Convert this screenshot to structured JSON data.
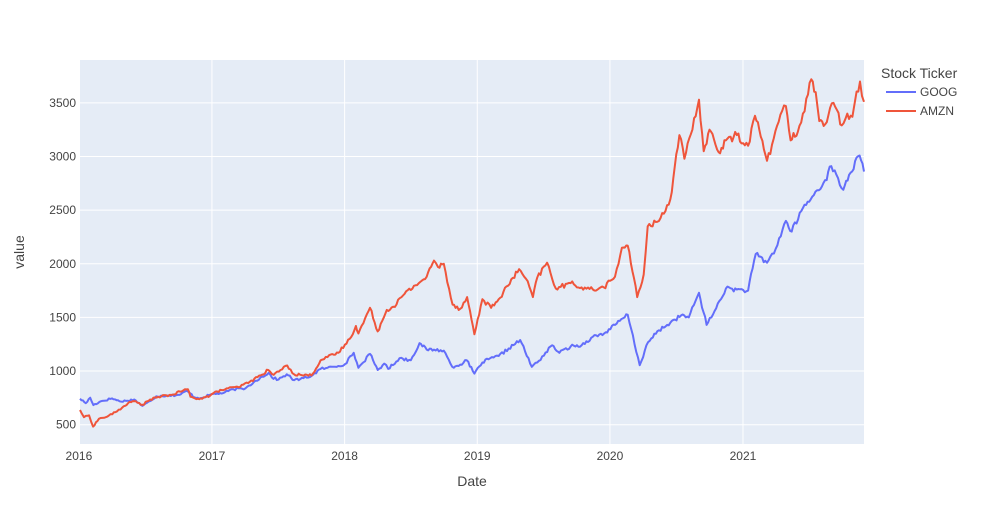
{
  "chart_data": {
    "type": "line",
    "xlabel": "Date",
    "ylabel": "value",
    "xlim": [
      "2016-01-04",
      "2021-11-30"
    ],
    "ylim": [
      320,
      3900
    ],
    "x_ticks": [
      "2016",
      "2017",
      "2018",
      "2019",
      "2020",
      "2021"
    ],
    "y_ticks": [
      500,
      1000,
      1500,
      2000,
      2500,
      3000,
      3500
    ],
    "legend": {
      "title": "Stock Ticker",
      "position": "top-right"
    },
    "grid": true,
    "plot_background": "#E5ECF6",
    "series": [
      {
        "name": "GOOG",
        "color": "#636EFA",
        "points": [
          [
            "2016-01-04",
            742
          ],
          [
            "2016-01-20",
            700
          ],
          [
            "2016-02-01",
            752
          ],
          [
            "2016-02-10",
            683
          ],
          [
            "2016-03-01",
            718
          ],
          [
            "2016-04-01",
            745
          ],
          [
            "2016-04-22",
            718
          ],
          [
            "2016-05-10",
            722
          ],
          [
            "2016-06-01",
            735
          ],
          [
            "2016-06-24",
            675
          ],
          [
            "2016-07-15",
            720
          ],
          [
            "2016-08-01",
            765
          ],
          [
            "2016-09-01",
            772
          ],
          [
            "2016-10-03",
            778
          ],
          [
            "2016-10-25",
            815
          ],
          [
            "2016-11-14",
            755
          ],
          [
            "2016-12-01",
            748
          ],
          [
            "2017-01-03",
            786
          ],
          [
            "2017-02-01",
            795
          ],
          [
            "2017-03-01",
            830
          ],
          [
            "2017-04-03",
            838
          ],
          [
            "2017-05-01",
            910
          ],
          [
            "2017-06-06",
            983
          ],
          [
            "2017-06-15",
            940
          ],
          [
            "2017-07-03",
            920
          ],
          [
            "2017-07-26",
            970
          ],
          [
            "2017-08-15",
            915
          ],
          [
            "2017-09-01",
            925
          ],
          [
            "2017-10-02",
            955
          ],
          [
            "2017-10-27",
            1020
          ],
          [
            "2017-11-15",
            1030
          ],
          [
            "2017-12-01",
            1040
          ],
          [
            "2018-01-02",
            1065
          ],
          [
            "2018-01-26",
            1170
          ],
          [
            "2018-02-08",
            1030
          ],
          [
            "2018-03-12",
            1160
          ],
          [
            "2018-04-02",
            1010
          ],
          [
            "2018-04-20",
            1070
          ],
          [
            "2018-05-01",
            1020
          ],
          [
            "2018-06-01",
            1120
          ],
          [
            "2018-07-02",
            1100
          ],
          [
            "2018-07-26",
            1260
          ],
          [
            "2018-08-15",
            1200
          ],
          [
            "2018-09-04",
            1200
          ],
          [
            "2018-10-01",
            1190
          ],
          [
            "2018-10-24",
            1040
          ],
          [
            "2018-11-15",
            1060
          ],
          [
            "2018-12-03",
            1100
          ],
          [
            "2018-12-24",
            976
          ],
          [
            "2019-01-15",
            1080
          ],
          [
            "2019-02-01",
            1110
          ],
          [
            "2019-03-01",
            1140
          ],
          [
            "2019-04-29",
            1290
          ],
          [
            "2019-05-31",
            1040
          ],
          [
            "2019-06-15",
            1080
          ],
          [
            "2019-07-26",
            1240
          ],
          [
            "2019-08-15",
            1170
          ],
          [
            "2019-09-15",
            1230
          ],
          [
            "2019-10-15",
            1240
          ],
          [
            "2019-11-15",
            1320
          ],
          [
            "2019-12-16",
            1350
          ],
          [
            "2020-01-15",
            1430
          ],
          [
            "2020-02-19",
            1525
          ],
          [
            "2020-03-23",
            1055
          ],
          [
            "2020-04-15",
            1270
          ],
          [
            "2020-05-15",
            1380
          ],
          [
            "2020-06-15",
            1450
          ],
          [
            "2020-07-15",
            1520
          ],
          [
            "2020-08-05",
            1500
          ],
          [
            "2020-09-02",
            1730
          ],
          [
            "2020-09-23",
            1430
          ],
          [
            "2020-10-15",
            1560
          ],
          [
            "2020-11-15",
            1770
          ],
          [
            "2020-12-15",
            1760
          ],
          [
            "2021-01-15",
            1750
          ],
          [
            "2021-02-05",
            2090
          ],
          [
            "2021-03-08",
            2010
          ],
          [
            "2021-04-01",
            2140
          ],
          [
            "2021-04-29",
            2400
          ],
          [
            "2021-05-15",
            2300
          ],
          [
            "2021-06-15",
            2520
          ],
          [
            "2021-07-15",
            2640
          ],
          [
            "2021-08-15",
            2780
          ],
          [
            "2021-09-01",
            2910
          ],
          [
            "2021-10-04",
            2690
          ],
          [
            "2021-10-20",
            2830
          ],
          [
            "2021-11-18",
            3010
          ],
          [
            "2021-11-30",
            2860
          ]
        ]
      },
      {
        "name": "AMZN",
        "color": "#EF553B",
        "points": [
          [
            "2016-01-04",
            637
          ],
          [
            "2016-01-15",
            570
          ],
          [
            "2016-01-29",
            587
          ],
          [
            "2016-02-09",
            482
          ],
          [
            "2016-02-25",
            555
          ],
          [
            "2016-03-15",
            570
          ],
          [
            "2016-04-15",
            625
          ],
          [
            "2016-04-29",
            659
          ],
          [
            "2016-05-15",
            700
          ],
          [
            "2016-06-01",
            720
          ],
          [
            "2016-06-24",
            685
          ],
          [
            "2016-07-15",
            735
          ],
          [
            "2016-08-15",
            765
          ],
          [
            "2016-09-15",
            780
          ],
          [
            "2016-10-14",
            820
          ],
          [
            "2016-10-27",
            830
          ],
          [
            "2016-11-03",
            760
          ],
          [
            "2016-11-15",
            745
          ],
          [
            "2016-12-01",
            745
          ],
          [
            "2016-12-27",
            770
          ],
          [
            "2017-01-15",
            810
          ],
          [
            "2017-02-15",
            840
          ],
          [
            "2017-03-15",
            850
          ],
          [
            "2017-04-15",
            900
          ],
          [
            "2017-05-15",
            960
          ],
          [
            "2017-06-05",
            1010
          ],
          [
            "2017-06-20",
            965
          ],
          [
            "2017-07-27",
            1052
          ],
          [
            "2017-08-15",
            970
          ],
          [
            "2017-09-01",
            965
          ],
          [
            "2017-10-02",
            960
          ],
          [
            "2017-10-27",
            1100
          ],
          [
            "2017-11-15",
            1130
          ],
          [
            "2017-12-15",
            1170
          ],
          [
            "2018-01-15",
            1300
          ],
          [
            "2018-02-01",
            1420
          ],
          [
            "2018-02-08",
            1350
          ],
          [
            "2018-03-12",
            1590
          ],
          [
            "2018-04-02",
            1370
          ],
          [
            "2018-04-27",
            1570
          ],
          [
            "2018-05-15",
            1600
          ],
          [
            "2018-06-15",
            1720
          ],
          [
            "2018-07-15",
            1800
          ],
          [
            "2018-08-15",
            1880
          ],
          [
            "2018-09-04",
            2030
          ],
          [
            "2018-09-15",
            1970
          ],
          [
            "2018-10-01",
            2000
          ],
          [
            "2018-10-25",
            1620
          ],
          [
            "2018-11-15",
            1580
          ],
          [
            "2018-12-04",
            1690
          ],
          [
            "2018-12-24",
            1343
          ],
          [
            "2019-01-15",
            1670
          ],
          [
            "2019-02-08",
            1590
          ],
          [
            "2019-03-01",
            1670
          ],
          [
            "2019-04-26",
            1950
          ],
          [
            "2019-05-15",
            1860
          ],
          [
            "2019-06-03",
            1690
          ],
          [
            "2019-06-15",
            1870
          ],
          [
            "2019-07-12",
            2010
          ],
          [
            "2019-08-05",
            1770
          ],
          [
            "2019-09-15",
            1820
          ],
          [
            "2019-10-15",
            1780
          ],
          [
            "2019-11-15",
            1760
          ],
          [
            "2019-12-15",
            1780
          ],
          [
            "2020-01-15",
            1880
          ],
          [
            "2020-02-03",
            2150
          ],
          [
            "2020-02-19",
            2170
          ],
          [
            "2020-03-16",
            1690
          ],
          [
            "2020-04-03",
            1900
          ],
          [
            "2020-04-14",
            2350
          ],
          [
            "2020-05-15",
            2400
          ],
          [
            "2020-06-15",
            2600
          ],
          [
            "2020-07-10",
            3200
          ],
          [
            "2020-07-24",
            2980
          ],
          [
            "2020-08-15",
            3250
          ],
          [
            "2020-09-02",
            3530
          ],
          [
            "2020-09-15",
            3050
          ],
          [
            "2020-10-01",
            3250
          ],
          [
            "2020-10-30",
            3030
          ],
          [
            "2020-11-15",
            3150
          ],
          [
            "2020-12-15",
            3200
          ],
          [
            "2021-01-15",
            3100
          ],
          [
            "2021-02-03",
            3380
          ],
          [
            "2021-02-15",
            3250
          ],
          [
            "2021-03-08",
            2960
          ],
          [
            "2021-03-22",
            3110
          ],
          [
            "2021-04-14",
            3390
          ],
          [
            "2021-04-29",
            3470
          ],
          [
            "2021-05-12",
            3150
          ],
          [
            "2021-06-01",
            3230
          ],
          [
            "2021-06-15",
            3400
          ],
          [
            "2021-07-08",
            3720
          ],
          [
            "2021-07-20",
            3600
          ],
          [
            "2021-07-30",
            3330
          ],
          [
            "2021-08-15",
            3300
          ],
          [
            "2021-09-07",
            3500
          ],
          [
            "2021-09-30",
            3290
          ],
          [
            "2021-10-15",
            3400
          ],
          [
            "2021-10-29",
            3370
          ],
          [
            "2021-11-05",
            3510
          ],
          [
            "2021-11-19",
            3700
          ],
          [
            "2021-11-30",
            3510
          ]
        ]
      }
    ]
  }
}
